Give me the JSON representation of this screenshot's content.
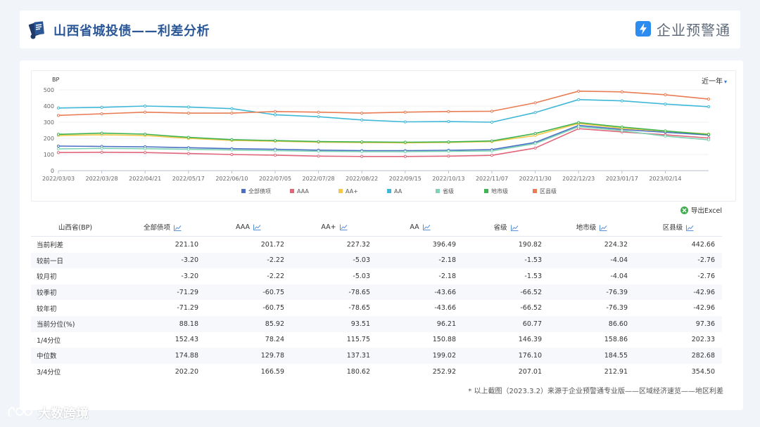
{
  "header": {
    "title": "山西省城投债——利差分析",
    "brand_name": "企业预警通",
    "brand_color": "#2d8cf0"
  },
  "range_select": {
    "label": "近一年",
    "caret": "▾"
  },
  "export_label": "导出Excel",
  "chart_data": {
    "type": "line",
    "ylabel": "BP",
    "ylim": [
      0,
      500
    ],
    "yticks": [
      0,
      100,
      200,
      300,
      400,
      500
    ],
    "x_ticks": [
      "2022/03/03",
      "2022/03/28",
      "2022/04/21",
      "2022/05/17",
      "2022/06/10",
      "2022/07/05",
      "2022/07/28",
      "2022/08/22",
      "2022/09/15",
      "2022/10/13",
      "2022/11/07",
      "2022/11/30",
      "2022/12/23",
      "2023/01/17",
      "2023/02/14"
    ],
    "x": [
      "2022/03/03",
      "2022/03/28",
      "2022/04/21",
      "2022/05/17",
      "2022/06/10",
      "2022/07/05",
      "2022/07/28",
      "2022/08/22",
      "2022/09/15",
      "2022/10/13",
      "2022/11/07",
      "2022/11/30",
      "2022/12/23",
      "2023/01/17",
      "2023/02/14",
      "2023/03/02"
    ],
    "grid": "horizontal",
    "legend_position": "bottom",
    "series": [
      {
        "name": "全部债项",
        "color": "#4a6fc4",
        "values": [
          152,
          150,
          148,
          142,
          136,
          132,
          127,
          124,
          124,
          126,
          130,
          175,
          280,
          255,
          238,
          221
        ]
      },
      {
        "name": "AAA",
        "color": "#e0667a",
        "values": [
          112,
          114,
          112,
          106,
          100,
          96,
          90,
          88,
          88,
          90,
          95,
          140,
          260,
          240,
          222,
          202
        ]
      },
      {
        "name": "AA+",
        "color": "#f2c94c",
        "values": [
          218,
          222,
          218,
          200,
          187,
          182,
          176,
          174,
          172,
          175,
          180,
          218,
          292,
          262,
          245,
          227
        ]
      },
      {
        "name": "AA",
        "color": "#3fb8d8",
        "values": [
          388,
          392,
          400,
          394,
          384,
          346,
          334,
          314,
          302,
          304,
          300,
          360,
          440,
          432,
          412,
          396
        ]
      },
      {
        "name": "省级",
        "color": "#7fd3b4",
        "values": [
          135,
          138,
          136,
          132,
          128,
          124,
          120,
          118,
          118,
          120,
          122,
          168,
          272,
          248,
          214,
          191
        ]
      },
      {
        "name": "地市级",
        "color": "#3fb34f",
        "values": [
          225,
          232,
          226,
          206,
          192,
          186,
          180,
          178,
          176,
          178,
          184,
          230,
          298,
          270,
          246,
          224
        ]
      },
      {
        "name": "区县级",
        "color": "#e97c54",
        "values": [
          342,
          352,
          362,
          356,
          356,
          366,
          362,
          356,
          362,
          366,
          368,
          420,
          492,
          488,
          470,
          443
        ]
      }
    ]
  },
  "table": {
    "headers": [
      "山西省(BP)",
      "全部债项",
      "AAA",
      "AA+",
      "AA",
      "省级",
      "地市级",
      "区县级"
    ],
    "rows": [
      [
        "当前利差",
        "221.10",
        "201.72",
        "227.32",
        "396.49",
        "190.82",
        "224.32",
        "442.66"
      ],
      [
        "较前一日",
        "-3.20",
        "-2.22",
        "-5.03",
        "-2.18",
        "-1.53",
        "-4.04",
        "-2.76"
      ],
      [
        "较月初",
        "-3.20",
        "-2.22",
        "-5.03",
        "-2.18",
        "-1.53",
        "-4.04",
        "-2.76"
      ],
      [
        "较季初",
        "-71.29",
        "-60.75",
        "-78.65",
        "-43.66",
        "-66.52",
        "-76.39",
        "-42.96"
      ],
      [
        "较年初",
        "-71.29",
        "-60.75",
        "-78.65",
        "-43.66",
        "-66.52",
        "-76.39",
        "-42.96"
      ],
      [
        "当前分位(%)",
        "88.18",
        "85.92",
        "93.51",
        "96.21",
        "60.77",
        "86.60",
        "97.36"
      ],
      [
        "1/4分位",
        "152.43",
        "78.24",
        "115.75",
        "150.88",
        "146.39",
        "158.86",
        "202.33"
      ],
      [
        "中位数",
        "174.88",
        "129.78",
        "137.31",
        "199.02",
        "176.10",
        "184.55",
        "282.68"
      ],
      [
        "3/4分位",
        "202.20",
        "166.59",
        "180.62",
        "252.92",
        "207.01",
        "212.91",
        "354.50"
      ]
    ]
  },
  "footnote": "* 以上截图（2023.3.2）来源于企业预警通专业版——区域经济速览——地区利差",
  "watermark": "大数跨境"
}
